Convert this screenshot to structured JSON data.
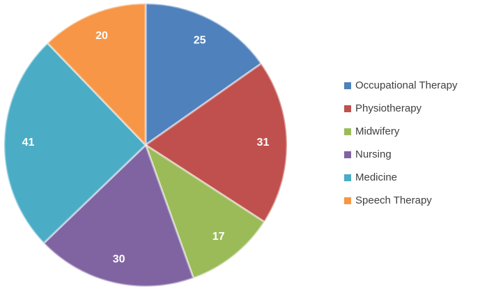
{
  "chart_data": {
    "type": "pie",
    "categories": [
      "Occupational Therapy",
      "Physiotherapy",
      "Midwifery",
      "Nursing",
      "Medicine",
      "Speech Therapy"
    ],
    "values": [
      25,
      31,
      17,
      30,
      41,
      20
    ],
    "colors": [
      "#4f81bd",
      "#c0504d",
      "#9bbb59",
      "#8064a2",
      "#4bacc6",
      "#f79646"
    ],
    "legend": "right"
  }
}
